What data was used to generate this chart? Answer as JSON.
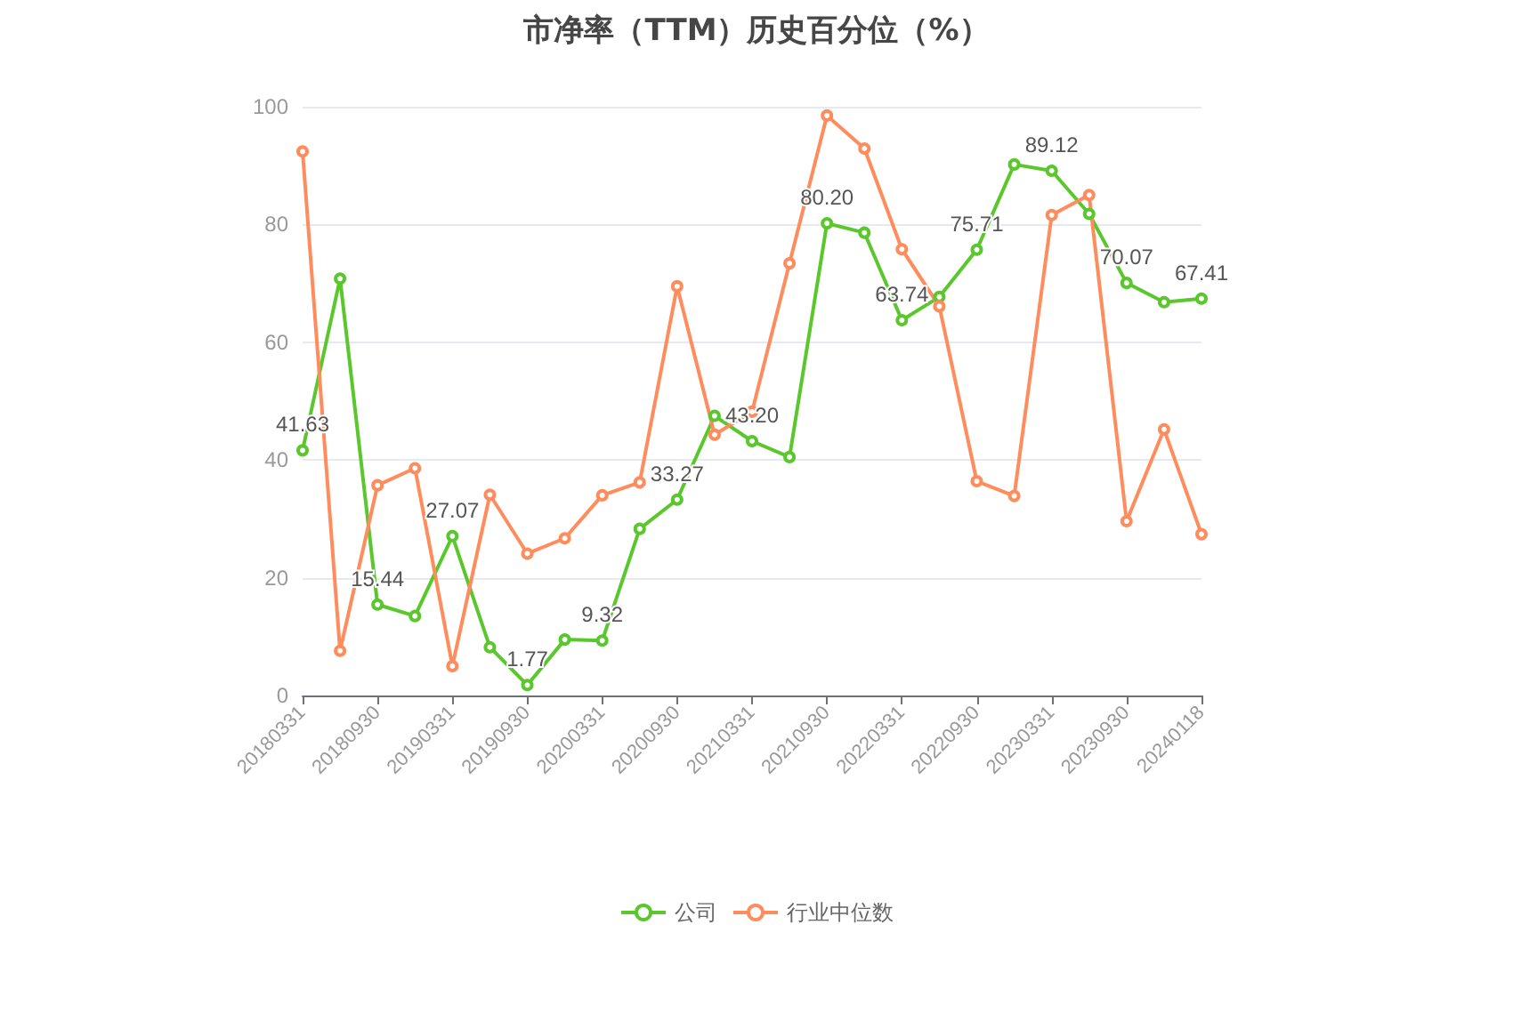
{
  "chart_data": {
    "type": "line",
    "title": "市净率（TTM）历史百分位（%）",
    "categories": [
      "20180331",
      null,
      "20180930",
      null,
      "20190331",
      null,
      "20190930",
      null,
      "20200331",
      null,
      "20200930",
      null,
      "20210331",
      null,
      "20210930",
      null,
      "20220331",
      null,
      "20220930",
      null,
      "20230331",
      null,
      "20230930",
      null,
      "20240118"
    ],
    "series": [
      {
        "name": "公司",
        "color": "#5ac72d",
        "values": [
          41.63,
          70.8,
          15.44,
          13.5,
          27.07,
          8.2,
          1.77,
          9.5,
          9.32,
          28.3,
          33.27,
          47.5,
          43.2,
          40.5,
          80.2,
          78.6,
          63.74,
          67.7,
          75.71,
          90.2,
          89.12,
          81.8,
          70.07,
          66.8,
          67.41
        ],
        "value_labels": [
          "41.63",
          null,
          "15.44",
          null,
          "27.07",
          null,
          "1.77",
          null,
          "9.32",
          null,
          "33.27",
          null,
          "43.20",
          null,
          "80.20",
          null,
          "63.74",
          null,
          "75.71",
          null,
          "89.12",
          null,
          "70.07",
          null,
          "67.41"
        ]
      },
      {
        "name": "行业中位数",
        "color": "#ff8c5c",
        "values": [
          92.4,
          7.6,
          35.7,
          38.6,
          5.0,
          34.1,
          24.1,
          26.7,
          34.0,
          36.2,
          69.5,
          44.3,
          48.2,
          73.4,
          98.5,
          92.9,
          75.8,
          66.1,
          36.4,
          33.9,
          81.6,
          85.0,
          29.6,
          45.2,
          27.4
        ]
      }
    ],
    "ylim": [
      0,
      100
    ],
    "yticks": [
      0,
      20,
      40,
      60,
      80,
      100
    ],
    "grid": "y",
    "legend": "bottom",
    "marker": "circle",
    "line_style": "solid"
  }
}
